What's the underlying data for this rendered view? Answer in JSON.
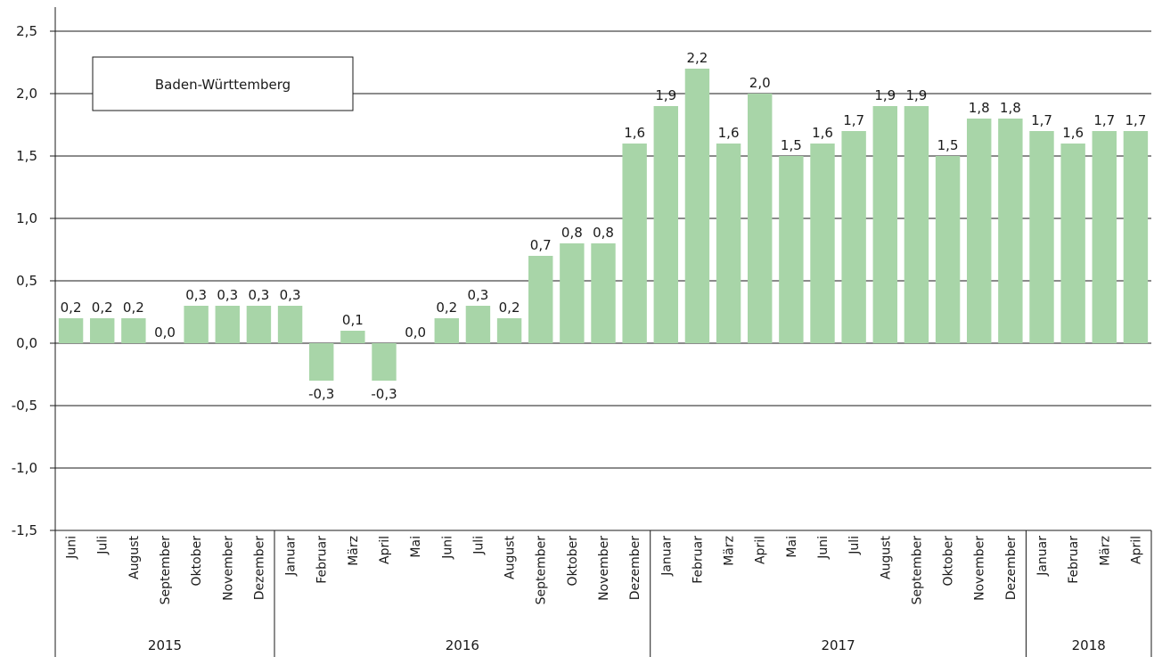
{
  "chart_data": {
    "type": "bar",
    "title": "",
    "legend_box_label": "Baden-Württemberg",
    "ylim": [
      -1.5,
      2.5
    ],
    "yticks": [
      2.5,
      2.0,
      1.5,
      1.0,
      0.5,
      0.0,
      -0.5,
      -1.0,
      -1.5
    ],
    "ytick_labels": [
      "2,5",
      "2,0",
      "1,5",
      "1,0",
      "0,5",
      "0,0",
      "-0,5",
      "-1,0",
      "-1,5"
    ],
    "grid": true,
    "bar_color": "#a8d5a8",
    "categories": [
      "Juni",
      "Juli",
      "August",
      "September",
      "Oktober",
      "November",
      "Dezember",
      "Januar",
      "Februar",
      "März",
      "April",
      "Mai",
      "Juni",
      "Juli",
      "August",
      "September",
      "Oktober",
      "November",
      "Dezember",
      "Januar",
      "Februar",
      "März",
      "April",
      "Mai",
      "Juni",
      "Juli",
      "August",
      "September",
      "Oktober",
      "November",
      "Dezember",
      "Januar",
      "Februar",
      "März",
      "April"
    ],
    "values": [
      0.2,
      0.2,
      0.2,
      0.0,
      0.3,
      0.3,
      0.3,
      0.3,
      -0.3,
      0.1,
      -0.3,
      0.0,
      0.2,
      0.3,
      0.2,
      0.7,
      0.8,
      0.8,
      1.6,
      1.9,
      2.2,
      1.6,
      2.0,
      1.5,
      1.6,
      1.7,
      1.9,
      1.9,
      1.5,
      1.8,
      1.8,
      1.7,
      1.6,
      1.7,
      1.7
    ],
    "value_labels": [
      "0,2",
      "0,2",
      "0,2",
      "0,0",
      "0,3",
      "0,3",
      "0,3",
      "0,3",
      "-0,3",
      "0,1",
      "-0,3",
      "0,0",
      "0,2",
      "0,3",
      "0,2",
      "0,7",
      "0,8",
      "0,8",
      "1,6",
      "1,9",
      "2,2",
      "1,6",
      "2,0",
      "1,5",
      "1,6",
      "1,7",
      "1,9",
      "1,9",
      "1,5",
      "1,8",
      "1,8",
      "1,7",
      "1,6",
      "1,7",
      "1,7"
    ],
    "years": [
      {
        "label": "2015",
        "count": 7
      },
      {
        "label": "2016",
        "count": 12
      },
      {
        "label": "2017",
        "count": 12
      },
      {
        "label": "2018",
        "count": 4
      }
    ]
  }
}
